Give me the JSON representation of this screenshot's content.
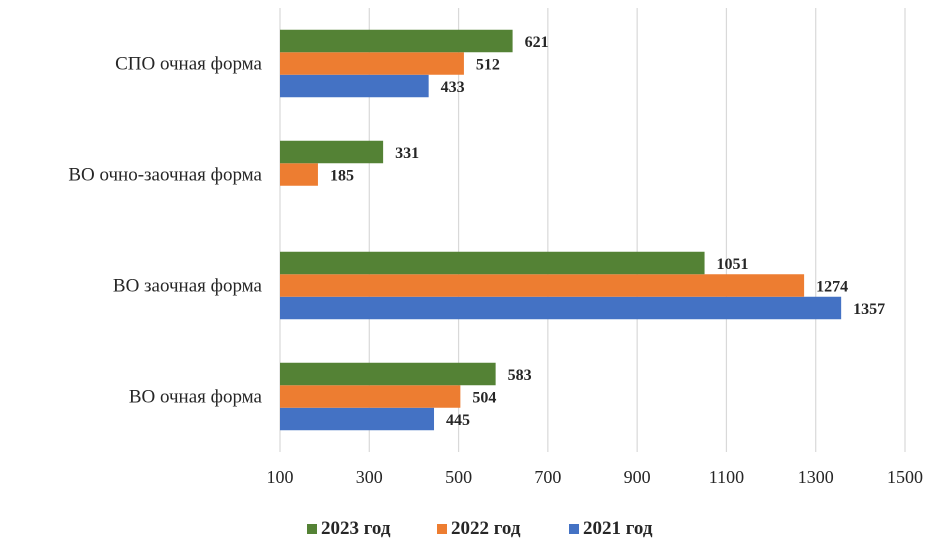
{
  "chart_data": {
    "type": "bar",
    "orientation": "horizontal",
    "categories": [
      "ВО очная форма",
      "ВО заочная форма",
      "ВО очно-заочная форма",
      "СПО очная форма"
    ],
    "series": [
      {
        "name": "2021 год",
        "color": "#4472C4",
        "values": [
          445,
          1357,
          null,
          433
        ]
      },
      {
        "name": "2022 год",
        "color": "#ED7D31",
        "values": [
          504,
          1274,
          185,
          512
        ]
      },
      {
        "name": "2023 год",
        "color": "#548235",
        "values": [
          583,
          1051,
          331,
          621
        ]
      }
    ],
    "xlim": [
      100,
      1500
    ],
    "xticks": [
      "100",
      "300",
      "500",
      "700",
      "900",
      "1100",
      "1300",
      "1500"
    ],
    "grid": true,
    "legend_position": "bottom",
    "legend_order": [
      "2023 год",
      "2022 год",
      "2021 год"
    ]
  }
}
